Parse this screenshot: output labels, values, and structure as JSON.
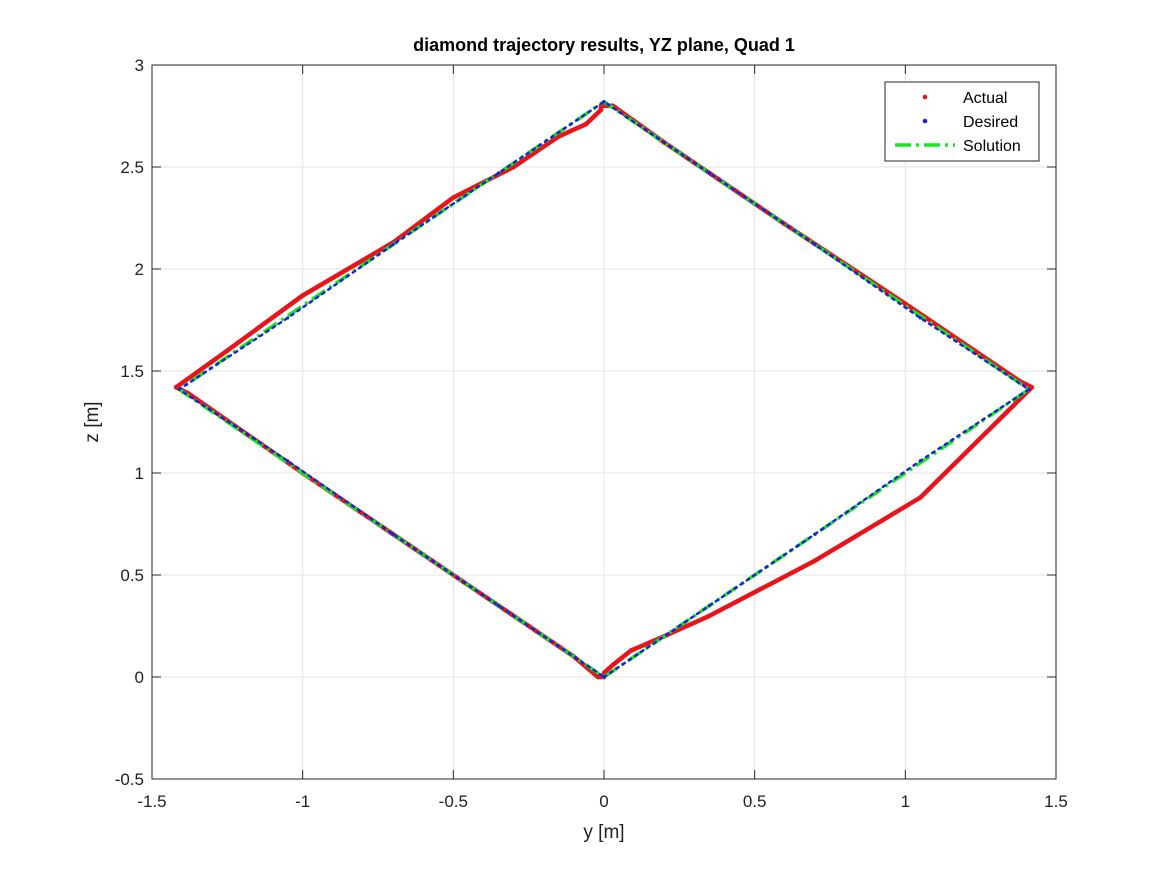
{
  "chart_data": {
    "type": "line",
    "title": "diamond trajectory results, YZ plane, Quad 1",
    "xlabel": "y [m]",
    "ylabel": "z [m]",
    "xlim": [
      -1.5,
      1.5
    ],
    "ylim": [
      -0.5,
      3
    ],
    "xticks": [
      -1.5,
      -1,
      -0.5,
      0,
      0.5,
      1,
      1.5
    ],
    "xtick_labels": [
      "-1.5",
      "-1",
      "-0.5",
      "0",
      "0.5",
      "1",
      "1.5"
    ],
    "yticks": [
      -0.5,
      0,
      0.5,
      1,
      1.5,
      2,
      2.5,
      3
    ],
    "ytick_labels": [
      "-0.5",
      "0",
      "0.5",
      "1",
      "1.5",
      "2",
      "2.5",
      "3"
    ],
    "grid": true,
    "legend_position": "top-right",
    "series": [
      {
        "name": "Actual",
        "style": "dots",
        "color": "#e8141b",
        "x": [
          0.0,
          0.03,
          0.09,
          0.2,
          0.35,
          0.7,
          1.05,
          1.42,
          1.38,
          1.0,
          0.6,
          0.2,
          0.03,
          -0.01,
          -0.01,
          -0.06,
          -0.15,
          -0.3,
          -0.5,
          -0.7,
          -1.0,
          -1.25,
          -1.42,
          -1.38,
          -1.0,
          -0.6,
          -0.3,
          -0.1,
          -0.02,
          0.0
        ],
        "y": [
          0.02,
          0.06,
          0.13,
          0.2,
          0.3,
          0.57,
          0.88,
          1.42,
          1.45,
          1.83,
          2.22,
          2.62,
          2.8,
          2.8,
          2.78,
          2.71,
          2.65,
          2.5,
          2.35,
          2.13,
          1.87,
          1.6,
          1.42,
          1.39,
          1.0,
          0.6,
          0.3,
          0.1,
          0.0,
          0.0
        ]
      },
      {
        "name": "Desired",
        "style": "dots",
        "color": "#1524d6",
        "x": [
          0.0,
          0.35,
          0.7,
          1.05,
          1.41,
          1.05,
          0.7,
          0.35,
          0.0,
          -0.35,
          -0.7,
          -1.05,
          -1.41,
          -1.05,
          -0.7,
          -0.35,
          0.0
        ],
        "y": [
          0.0,
          0.35,
          0.7,
          1.06,
          1.41,
          1.76,
          2.12,
          2.47,
          2.82,
          2.47,
          2.12,
          1.76,
          1.41,
          1.06,
          0.7,
          0.35,
          0.0
        ]
      },
      {
        "name": "Solution",
        "style": "dashdot",
        "color": "#18e61e",
        "x": [
          0.0,
          1.41,
          0.0,
          -1.41,
          0.0
        ],
        "y": [
          0.0,
          1.41,
          2.82,
          1.41,
          0.0
        ]
      }
    ]
  }
}
